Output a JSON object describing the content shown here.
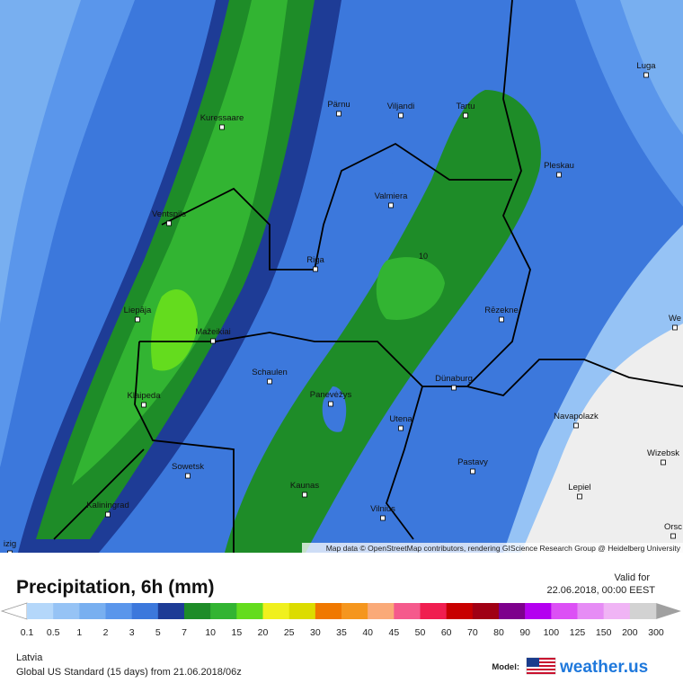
{
  "map": {
    "cities": [
      "Pärnu",
      "Viljandi",
      "Tartu",
      "Luga",
      "Kuressaare",
      "Pleskau",
      "Valmiera",
      "Ventspils",
      "Riga",
      "Rēzekne",
      "Liepāja",
      "Mažeikiai",
      "Schaulen",
      "Dünaburg",
      "Klaipeda",
      "Panevėžys",
      "Navapolazk",
      "Utena",
      "Wizebsk",
      "Sowetsk",
      "Pastavy",
      "Kaunas",
      "Lepiel",
      "Kaliningrad",
      "Vilnius",
      "We",
      "Orsc",
      "izig"
    ],
    "contour_label": "10",
    "attribution": "Map data © OpenStreetMap contributors, rendering GIScience Research Group @ Heidelberg University"
  },
  "legend": {
    "title": "Precipitation, 6h (mm)",
    "valid_label": "Valid for",
    "valid_time": "22.06.2018, 00:00 EEST",
    "values": [
      0.1,
      0.5,
      1,
      2,
      3,
      5,
      7,
      10,
      15,
      20,
      25,
      30,
      35,
      40,
      45,
      50,
      60,
      70,
      80,
      90,
      100,
      125,
      150,
      200,
      300
    ],
    "colors": [
      "#b4d7fa",
      "#96c3f5",
      "#78aff0",
      "#5a96eb",
      "#3c78dc",
      "#1e3c96",
      "#1e8c28",
      "#32b432",
      "#64dc1e",
      "#f0f01e",
      "#dcdc00",
      "#f07800",
      "#f5961e",
      "#faaa78",
      "#f55a8c",
      "#f01e50",
      "#c80000",
      "#a00014",
      "#7d008c",
      "#b400f0",
      "#dc50f5",
      "#e68cf5",
      "#f0b4f5",
      "#d2d2d2"
    ],
    "below_color": "#ffffff",
    "above_color": "#a0a0a0"
  },
  "footer": {
    "region": "Latvia",
    "model_run": "Global US Standard (15 days) from 21.06.2018/06z",
    "model_label": "Model:",
    "brand": "weather.us"
  }
}
